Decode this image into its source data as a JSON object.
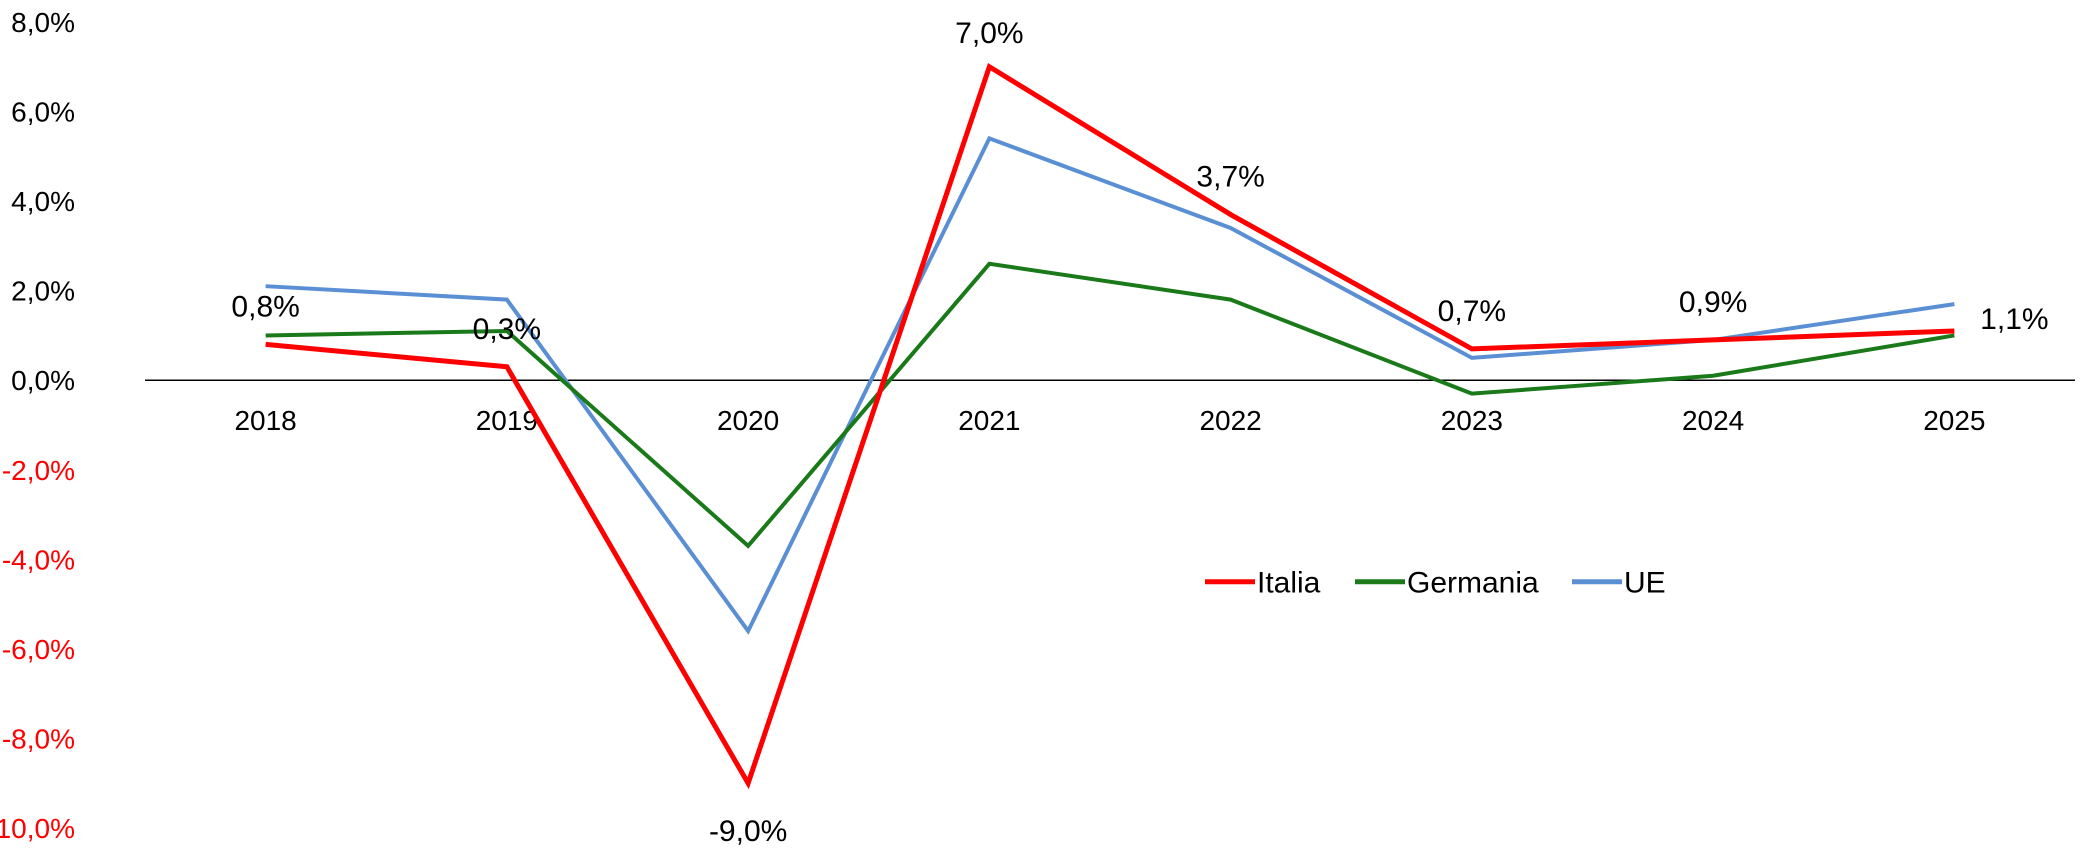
{
  "chart_data": {
    "type": "line",
    "categories": [
      "2018",
      "2019",
      "2020",
      "2021",
      "2022",
      "2023",
      "2024",
      "2025"
    ],
    "series": [
      {
        "name": "Italia",
        "color": "#ff0000",
        "values": [
          0.8,
          0.3,
          -9.0,
          7.0,
          3.7,
          0.7,
          0.9,
          1.1
        ]
      },
      {
        "name": "Germania",
        "color": "#1a7a1a",
        "values": [
          1.0,
          1.1,
          -3.7,
          2.6,
          1.8,
          -0.3,
          0.1,
          1.0
        ]
      },
      {
        "name": "UE",
        "color": "#5b8fd4",
        "values": [
          2.1,
          1.8,
          -5.6,
          5.4,
          3.4,
          0.5,
          0.9,
          1.7
        ]
      }
    ],
    "data_labels": [
      "0,8%",
      "0,3%",
      "-9,0%",
      "7,0%",
      "3,7%",
      "0,7%",
      "0,9%",
      "1,1%"
    ],
    "ylim": [
      -10,
      8
    ],
    "y_ticks": [
      8,
      6,
      4,
      2,
      0,
      -2,
      -4,
      -6,
      -8,
      -10
    ],
    "y_tick_labels": [
      "8,0%",
      "6,0%",
      "4,0%",
      "2,0%",
      "0,0%",
      "-2,0%",
      "-4,0%",
      "-6,0%",
      "-8,0%",
      "-10,0%"
    ],
    "negative_tick_color": "#ff0000",
    "positive_tick_color": "#000000",
    "grid": false,
    "legend_position": "right-middle"
  }
}
